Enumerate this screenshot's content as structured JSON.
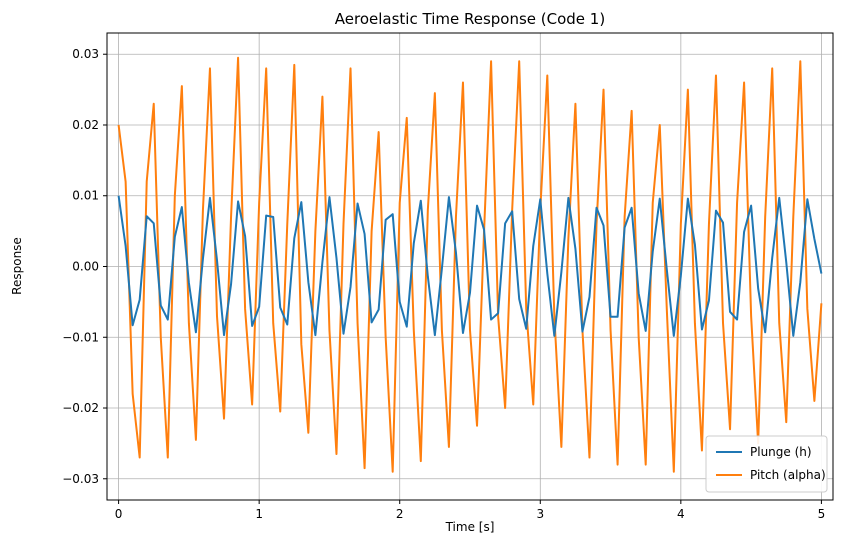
{
  "chart_data": {
    "type": "line",
    "title": "Aeroelastic Time Response (Code 1)",
    "xlabel": "Time [s]",
    "ylabel": "Response",
    "xlim": [
      -0.0825,
      5.0825
    ],
    "ylim": [
      -0.033,
      0.033
    ],
    "xticks": [
      0,
      1,
      2,
      3,
      4,
      5
    ],
    "xtick_labels": [
      "0",
      "1",
      "2",
      "3",
      "4",
      "5"
    ],
    "yticks": [
      -0.03,
      -0.02,
      -0.01,
      0.0,
      0.01,
      0.02,
      0.03
    ],
    "ytick_labels": [
      "−0.03",
      "−0.02",
      "−0.01",
      "0.00",
      "0.01",
      "0.02",
      "0.03"
    ],
    "grid": true,
    "legend_position": "lower-right",
    "series": [
      {
        "name": "Plunge (h)",
        "color": "#1f77b4",
        "x": [
          0,
          0.05,
          0.1,
          0.15,
          0.2,
          0.25,
          0.3,
          0.35,
          0.4,
          0.45,
          0.5,
          0.55,
          0.6,
          0.65,
          0.7,
          0.75,
          0.8,
          0.85,
          0.9,
          0.95,
          1.0,
          1.05,
          1.1,
          1.15,
          1.2,
          1.25,
          1.3,
          1.35,
          1.4,
          1.45,
          1.5,
          1.55,
          1.6,
          1.65,
          1.7,
          1.75,
          1.8,
          1.85,
          1.9,
          1.95,
          2.0,
          2.05,
          2.1,
          2.15,
          2.2,
          2.25,
          2.3,
          2.35,
          2.4,
          2.45,
          2.5,
          2.55,
          2.6,
          2.65,
          2.7,
          2.75,
          2.8,
          2.85,
          2.9,
          2.95,
          3.0,
          3.05,
          3.1,
          3.15,
          3.2,
          3.25,
          3.3,
          3.35,
          3.4,
          3.45,
          3.5,
          3.55,
          3.6,
          3.65,
          3.7,
          3.75,
          3.8,
          3.85,
          3.9,
          3.95,
          4.0,
          4.05,
          4.1,
          4.15,
          4.2,
          4.25,
          4.3,
          4.35,
          4.4,
          4.45,
          4.5,
          4.55,
          4.6,
          4.65,
          4.7,
          4.75,
          4.8,
          4.85,
          4.9,
          4.95,
          5.0
        ],
        "y": [
          0.01,
          0.0029,
          -0.0083,
          -0.0047,
          0.0071,
          0.0061,
          -0.0055,
          -0.0075,
          0.0042,
          0.0084,
          -0.0023,
          -0.0093,
          0.0011,
          0.0097,
          0.0009,
          -0.0097,
          -0.0025,
          0.0092,
          0.0043,
          -0.0084,
          -0.0057,
          0.0072,
          0.007,
          -0.0058,
          -0.0082,
          0.004,
          0.0091,
          -0.0022,
          -0.0097,
          0.0006,
          0.0098,
          0.0012,
          -0.0095,
          -0.0029,
          0.0089,
          0.0046,
          -0.0079,
          -0.0061,
          0.0066,
          0.0074,
          -0.005,
          -0.0085,
          0.0033,
          0.0093,
          -0.0014,
          -0.0097,
          -0.0003,
          0.0098,
          0.002,
          -0.0094,
          -0.0037,
          0.0086,
          0.0052,
          -0.0075,
          -0.0066,
          0.0061,
          0.0078,
          -0.0046,
          -0.0088,
          0.0029,
          0.0095,
          -0.001,
          -0.0098,
          -0.0008,
          0.0097,
          0.0025,
          -0.0092,
          -0.0043,
          0.0083,
          0.0058,
          -0.0071,
          -0.0071,
          0.0055,
          0.0083,
          -0.0038,
          -0.0091,
          0.0021,
          0.0096,
          -0.0004,
          -0.0098,
          -0.0013,
          0.0096,
          0.0031,
          -0.0089,
          -0.0048,
          0.0079,
          0.0062,
          -0.0064,
          -0.0075,
          0.0049,
          0.0086,
          -0.0031,
          -0.0093,
          0.0012,
          0.0097,
          0.0006,
          -0.0098,
          -0.0022,
          0.0095,
          0.0039,
          -0.001
        ],
        "peak_amplitude": 0.01,
        "frequency_hz": 4.54
      },
      {
        "name": "Pitch (alpha)",
        "color": "#ff7f0e",
        "x": [
          0,
          0.05,
          0.1,
          0.15,
          0.2,
          0.25,
          0.3,
          0.35,
          0.4,
          0.45,
          0.5,
          0.55,
          0.6,
          0.65,
          0.7,
          0.75,
          0.8,
          0.85,
          0.9,
          0.95,
          1.0,
          1.05,
          1.1,
          1.15,
          1.2,
          1.25,
          1.3,
          1.35,
          1.4,
          1.45,
          1.5,
          1.55,
          1.6,
          1.65,
          1.7,
          1.75,
          1.8,
          1.85,
          1.9,
          1.95,
          2.0,
          2.05,
          2.1,
          2.15,
          2.2,
          2.25,
          2.3,
          2.35,
          2.4,
          2.45,
          2.5,
          2.55,
          2.6,
          2.65,
          2.7,
          2.75,
          2.8,
          2.85,
          2.9,
          2.95,
          3.0,
          3.05,
          3.1,
          3.15,
          3.2,
          3.25,
          3.3,
          3.35,
          3.4,
          3.45,
          3.5,
          3.55,
          3.6,
          3.65,
          3.7,
          3.75,
          3.8,
          3.85,
          3.9,
          3.95,
          4.0,
          4.05,
          4.1,
          4.15,
          4.2,
          4.25,
          4.3,
          4.35,
          4.4,
          4.45,
          4.5,
          4.55,
          4.6,
          4.65,
          4.7,
          4.75,
          4.8,
          4.85,
          4.9,
          4.95,
          5.0
        ],
        "y": [
          0.02,
          0.012,
          -0.018,
          -0.027,
          0.012,
          0.023,
          -0.01,
          -0.027,
          0.01,
          0.0255,
          -0.008,
          -0.0245,
          0.008,
          0.028,
          -0.007,
          -0.0215,
          0.007,
          0.0295,
          -0.006,
          -0.0195,
          0.009,
          0.028,
          -0.008,
          -0.0205,
          0.006,
          0.0285,
          -0.011,
          -0.0235,
          0.005,
          0.024,
          -0.009,
          -0.0265,
          0.006,
          0.028,
          -0.008,
          -0.0285,
          0.005,
          0.019,
          -0.01,
          -0.029,
          0.009,
          0.021,
          -0.009,
          -0.0275,
          0.008,
          0.0245,
          -0.009,
          -0.0255,
          0.007,
          0.026,
          -0.009,
          -0.0225,
          0.005,
          0.029,
          -0.007,
          -0.02,
          0.008,
          0.029,
          -0.006,
          -0.0195,
          0.008,
          0.027,
          -0.007,
          -0.0255,
          0.004,
          0.023,
          -0.009,
          -0.027,
          0.006,
          0.025,
          -0.009,
          -0.028,
          0.007,
          0.022,
          -0.01,
          -0.028,
          0.009,
          0.02,
          -0.006,
          -0.029,
          0.006,
          0.025,
          -0.008,
          -0.026,
          0.006,
          0.027,
          -0.008,
          -0.023,
          0.009,
          0.026,
          -0.007,
          -0.025,
          0.007,
          0.028,
          -0.008,
          -0.022,
          0.007,
          0.029,
          -0.006,
          -0.019,
          -0.0052
        ],
        "envelope_note": "beating oscillation between about ±0.020 and ±0.030"
      }
    ]
  },
  "legend": {
    "items": [
      "Plunge (h)",
      "Pitch (alpha)"
    ]
  },
  "colors": {
    "plunge": "#1f77b4",
    "pitch": "#ff7f0e",
    "grid": "#b0b0b0"
  }
}
